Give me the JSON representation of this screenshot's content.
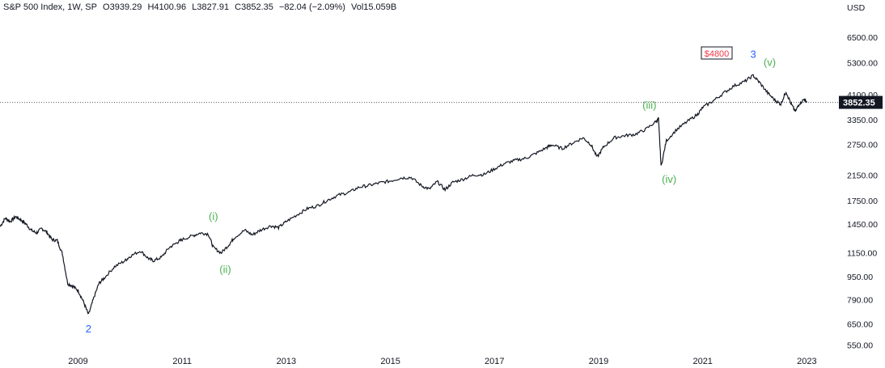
{
  "header": {
    "title": "S&P 500 Index, 1W, SP",
    "open": "O3939.29",
    "high": "H4100.96",
    "low": "L3827.91",
    "close": "C3852.35",
    "change": "−82.04 (−2.09%)",
    "volume": "Vol15.059B"
  },
  "chart_data": {
    "type": "line",
    "currency": "USD",
    "scale": "log",
    "ylim": [
      530,
      7600
    ],
    "xlim": [
      2007.5,
      2023.6
    ],
    "last_price": "3852.35",
    "last_price_value": 3852.35,
    "y_ticks": [
      "6500.00",
      "5300.00",
      "4100.00",
      "3350.00",
      "2750.00",
      "2150.00",
      "1750.00",
      "1450.00",
      "1150.00",
      "950.00",
      "790.00",
      "650.00",
      "550.00"
    ],
    "x_ticks": [
      "2009",
      "2011",
      "2013",
      "2015",
      "2017",
      "2019",
      "2021",
      "2023"
    ],
    "series": [
      {
        "x": [
          2007.5,
          2007.6,
          2007.7,
          2007.8,
          2007.9,
          2008.0,
          2008.1,
          2008.2,
          2008.3,
          2008.4,
          2008.5,
          2008.6,
          2008.7,
          2008.8,
          2008.9,
          2009.0,
          2009.1,
          2009.2,
          2009.3,
          2009.4,
          2009.5,
          2009.7,
          2009.9,
          2010.0,
          2010.2,
          2010.35,
          2010.45,
          2010.6,
          2010.75,
          2010.9,
          2011.0,
          2011.2,
          2011.35,
          2011.5,
          2011.6,
          2011.75,
          2011.9,
          2012.0,
          2012.2,
          2012.35,
          2012.5,
          2012.7,
          2012.85,
          2013.0,
          2013.2,
          2013.4,
          2013.6,
          2013.8,
          2014.0,
          2014.2,
          2014.4,
          2014.6,
          2014.8,
          2015.0,
          2015.2,
          2015.4,
          2015.6,
          2015.75,
          2015.9,
          2016.05,
          2016.2,
          2016.4,
          2016.6,
          2016.8,
          2017.0,
          2017.2,
          2017.4,
          2017.6,
          2017.8,
          2018.0,
          2018.1,
          2018.3,
          2018.5,
          2018.7,
          2018.85,
          2018.97,
          2019.1,
          2019.3,
          2019.5,
          2019.7,
          2019.9,
          2020.1,
          2020.15,
          2020.2,
          2020.3,
          2020.5,
          2020.7,
          2020.9,
          2021.0,
          2021.2,
          2021.4,
          2021.6,
          2021.8,
          2021.97,
          2022.1,
          2022.25,
          2022.4,
          2022.5,
          2022.6,
          2022.7,
          2022.78,
          2022.85,
          2022.95,
          2023.0
        ],
        "y": [
          1420,
          1520,
          1480,
          1540,
          1500,
          1450,
          1380,
          1350,
          1400,
          1360,
          1280,
          1270,
          1140,
          900,
          880,
          850,
          780,
          700,
          800,
          900,
          940,
          1030,
          1080,
          1120,
          1170,
          1100,
          1080,
          1110,
          1200,
          1250,
          1280,
          1320,
          1350,
          1340,
          1200,
          1150,
          1230,
          1300,
          1380,
          1330,
          1380,
          1430,
          1410,
          1480,
          1560,
          1640,
          1680,
          1760,
          1830,
          1870,
          1950,
          1980,
          2020,
          2050,
          2100,
          2110,
          1970,
          1920,
          2040,
          1910,
          2030,
          2080,
          2150,
          2160,
          2260,
          2360,
          2420,
          2460,
          2560,
          2680,
          2740,
          2660,
          2780,
          2900,
          2750,
          2480,
          2700,
          2900,
          2950,
          2980,
          3100,
          3300,
          3380,
          2300,
          2830,
          3100,
          3300,
          3500,
          3700,
          3900,
          4150,
          4400,
          4550,
          4780,
          4500,
          4150,
          3900,
          3800,
          4200,
          3800,
          3580,
          3800,
          3950,
          3852.35
        ]
      }
    ],
    "annotations": [
      {
        "label": "2",
        "x": 2009.2,
        "y": 700
      },
      {
        "label": "(i)",
        "x": 2011.6,
        "y": 1370
      },
      {
        "label": "(ii)",
        "x": 2011.75,
        "y": 1150
      },
      {
        "label": "(iii)",
        "x": 2020.1,
        "y": 3380
      },
      {
        "label": "(iv)",
        "x": 2020.2,
        "y": 2300
      },
      {
        "label": "3",
        "x": 2021.97,
        "y": 4780
      },
      {
        "label": "(v)",
        "x": 2022.1,
        "y": 4780
      },
      {
        "label": "$4800",
        "x": 2021.4,
        "y": 4780
      }
    ]
  },
  "colors": {
    "line": "#131722",
    "wave_main": "#2962ff",
    "wave_minor": "#4caf50",
    "price_label_bg": "#131722",
    "price_label_text": "#ffffff",
    "callout": "#f23645"
  }
}
